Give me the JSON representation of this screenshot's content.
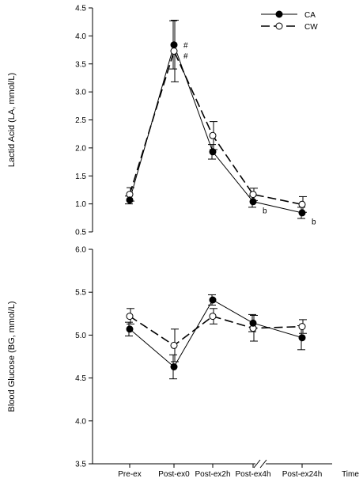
{
  "chart_data": [
    {
      "type": "line",
      "ylabel": "Lactid Acid (LA, mmol/L)",
      "xlabel": "",
      "ylim": [
        0.5,
        4.5
      ],
      "yticks": [
        0.5,
        1.0,
        1.5,
        2.0,
        2.5,
        3.0,
        3.5,
        4.0,
        4.5
      ],
      "ytick_labels": [
        "0.5",
        "1.0",
        "1.5",
        "2.0",
        "2.5",
        "3.0",
        "3.5",
        "4.0",
        "4.5"
      ],
      "categories": [
        "Pre-ex",
        "Post-ex0",
        "Post-ex2h",
        "Post-ex4h",
        "Post-ex24h"
      ],
      "legend_position": "top-right",
      "series": [
        {
          "name": "CA",
          "marker": "filled-circle",
          "line": "solid",
          "values": [
            1.07,
            3.84,
            1.93,
            1.04,
            0.84
          ],
          "errors": [
            0.07,
            0.43,
            0.13,
            0.1,
            0.1
          ]
        },
        {
          "name": "CW",
          "marker": "open-circle",
          "line": "dashed",
          "values": [
            1.17,
            3.73,
            2.22,
            1.17,
            0.99
          ],
          "errors": [
            0.12,
            0.55,
            0.25,
            0.11,
            0.14
          ]
        }
      ],
      "annotations": [
        {
          "category": "Post-ex0",
          "y": 3.84,
          "text": "#"
        },
        {
          "category": "Post-ex0",
          "y": 3.65,
          "text": "#"
        },
        {
          "category": "Post-ex4h",
          "y": 0.89,
          "text": "b"
        },
        {
          "category": "Post-ex24h",
          "y": 0.69,
          "text": "b"
        }
      ]
    },
    {
      "type": "line",
      "ylabel": "Blood Glucose (BG, mmol/L)",
      "xlabel": "Time",
      "ylim": [
        3.5,
        6.0
      ],
      "yticks": [
        3.5,
        4.0,
        4.5,
        5.0,
        5.5,
        6.0
      ],
      "ytick_labels": [
        "3.5",
        "4.0",
        "4.5",
        "5.0",
        "5.5",
        "6.0"
      ],
      "categories": [
        "Pre-ex",
        "Post-ex0",
        "Post-ex2h",
        "Post-ex4h",
        "Post-ex24h"
      ],
      "axis_break_between": [
        "Post-ex4h",
        "Post-ex24h"
      ],
      "series": [
        {
          "name": "CA",
          "marker": "filled-circle",
          "line": "solid",
          "values": [
            5.07,
            4.63,
            5.41,
            5.14,
            4.97
          ],
          "errors": [
            0.08,
            0.14,
            0.06,
            0.1,
            0.14
          ]
        },
        {
          "name": "CW",
          "marker": "open-circle",
          "line": "dashed",
          "values": [
            5.22,
            4.88,
            5.22,
            5.08,
            5.1
          ],
          "errors": [
            0.09,
            0.19,
            0.09,
            0.15,
            0.08
          ]
        }
      ]
    }
  ]
}
